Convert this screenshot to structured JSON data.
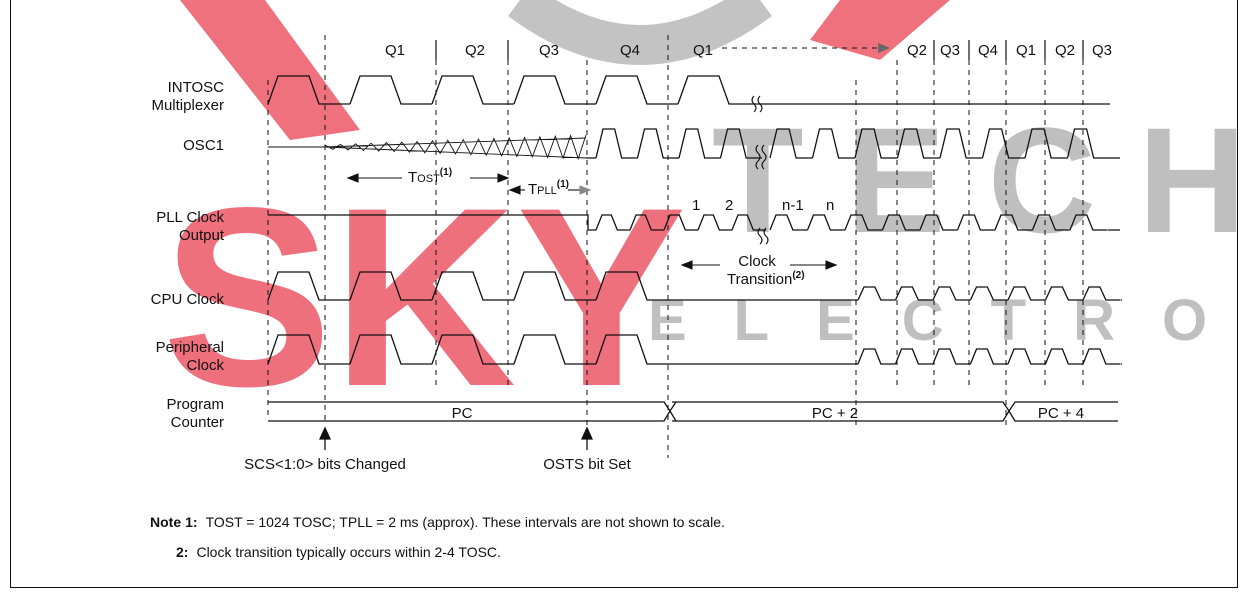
{
  "watermark": {
    "brand": "SKY",
    "tech": "TECH",
    "sub": "ELECTRONIC",
    "colors": {
      "red": "#e8394a",
      "gray": "#9a9a9a"
    }
  },
  "cycles": {
    "q1": "Q1",
    "q2": "Q2",
    "q3": "Q3",
    "q4": "Q4",
    "q1b": "Q1",
    "tail": [
      "Q2",
      "Q3",
      "Q4",
      "Q1",
      "Q2",
      "Q3"
    ]
  },
  "signals": {
    "intosc_1": "INTOSC",
    "intosc_2": "Multiplexer",
    "osc1": "OSC1",
    "pll_1": "PLL Clock",
    "pll_2": "Output",
    "cpu": "CPU Clock",
    "periph_1": "Peripheral",
    "periph_2": "Clock",
    "pc_1": "Program",
    "pc_2": "Counter"
  },
  "timing": {
    "tost_big": "T",
    "tost_small": "OST",
    "tost_sup": "(1)",
    "tpll_big": "T",
    "tpll_small": "PLL",
    "tpll_sup": "(1)"
  },
  "pll_counts": {
    "c1": "1",
    "c2": "2",
    "cn1": "n-1",
    "cn": "n"
  },
  "clock_transition": {
    "line1": "Clock",
    "line2": "Transition",
    "sup": "(2)"
  },
  "pc_values": {
    "pc": "PC",
    "pc2": "PC + 2",
    "pc4": "PC + 4"
  },
  "events": {
    "scs": "SCS<1:0> bits Changed",
    "osts": "OSTS bit Set"
  },
  "notes": {
    "head": "Note",
    "n1_num": "1:",
    "n1_text": "TOST = 1024 TOSC; TPLL = 2 ms (approx). These intervals are not shown to scale.",
    "n2_num": "2:",
    "n2_text": "Clock transition typically occurs within 2-4 TOSC."
  }
}
